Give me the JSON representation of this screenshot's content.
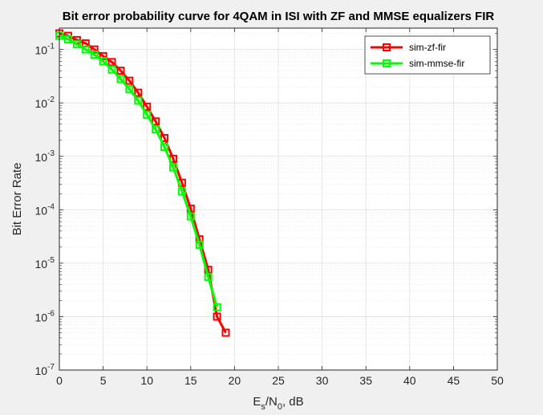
{
  "chart_data": {
    "type": "line",
    "title": "Bit error probability curve for 4QAM in ISI with ZF and MMSE equalizers FIR",
    "xlabel": {
      "base": "E",
      "sub1": "s",
      "mid": "/N",
      "sub2": "0",
      "tail": ", dB"
    },
    "ylabel": "Bit Error Rate",
    "xlim": [
      0,
      50
    ],
    "ylim_log10": [
      -7,
      -0.6
    ],
    "yscale": "log",
    "grid": true,
    "minor_grid": true,
    "legend_location": "top-right",
    "x_ticks": [
      0,
      5,
      10,
      15,
      20,
      25,
      30,
      35,
      40,
      45,
      50
    ],
    "y_ticks": [
      {
        "base": "10",
        "exp": "-1",
        "value": -1
      },
      {
        "base": "10",
        "exp": "-2",
        "value": -2
      },
      {
        "base": "10",
        "exp": "-3",
        "value": -3
      },
      {
        "base": "10",
        "exp": "-4",
        "value": -4
      },
      {
        "base": "10",
        "exp": "-5",
        "value": -5
      },
      {
        "base": "10",
        "exp": "-6",
        "value": -6
      },
      {
        "base": "10",
        "exp": "-7",
        "value": -7
      }
    ],
    "series": [
      {
        "name": "sim-zf-fir",
        "color": "#ff0000",
        "marker": "square",
        "x": [
          0,
          1,
          2,
          3,
          4,
          5,
          6,
          7,
          8,
          9,
          10,
          11,
          12,
          13,
          14,
          15,
          16,
          17,
          18,
          19
        ],
        "y": [
          0.2,
          0.18,
          0.15,
          0.13,
          0.1,
          0.075,
          0.058,
          0.04,
          0.026,
          0.0155,
          0.0085,
          0.0045,
          0.0022,
          0.0009,
          0.00032,
          0.000105,
          2.8e-05,
          7.5e-06,
          1e-06,
          5e-07
        ]
      },
      {
        "name": "sim-mmse-fir",
        "color": "#00ff00",
        "marker": "square",
        "x": [
          0,
          1,
          2,
          3,
          4,
          5,
          6,
          7,
          8,
          9,
          10,
          11,
          12,
          13,
          14,
          15,
          16,
          17,
          18
        ],
        "y": [
          0.18,
          0.155,
          0.125,
          0.1,
          0.08,
          0.06,
          0.042,
          0.028,
          0.018,
          0.011,
          0.006,
          0.0032,
          0.0015,
          0.00062,
          0.00022,
          7.5e-05,
          2.2e-05,
          5.5e-06,
          1.5e-06
        ]
      }
    ]
  }
}
